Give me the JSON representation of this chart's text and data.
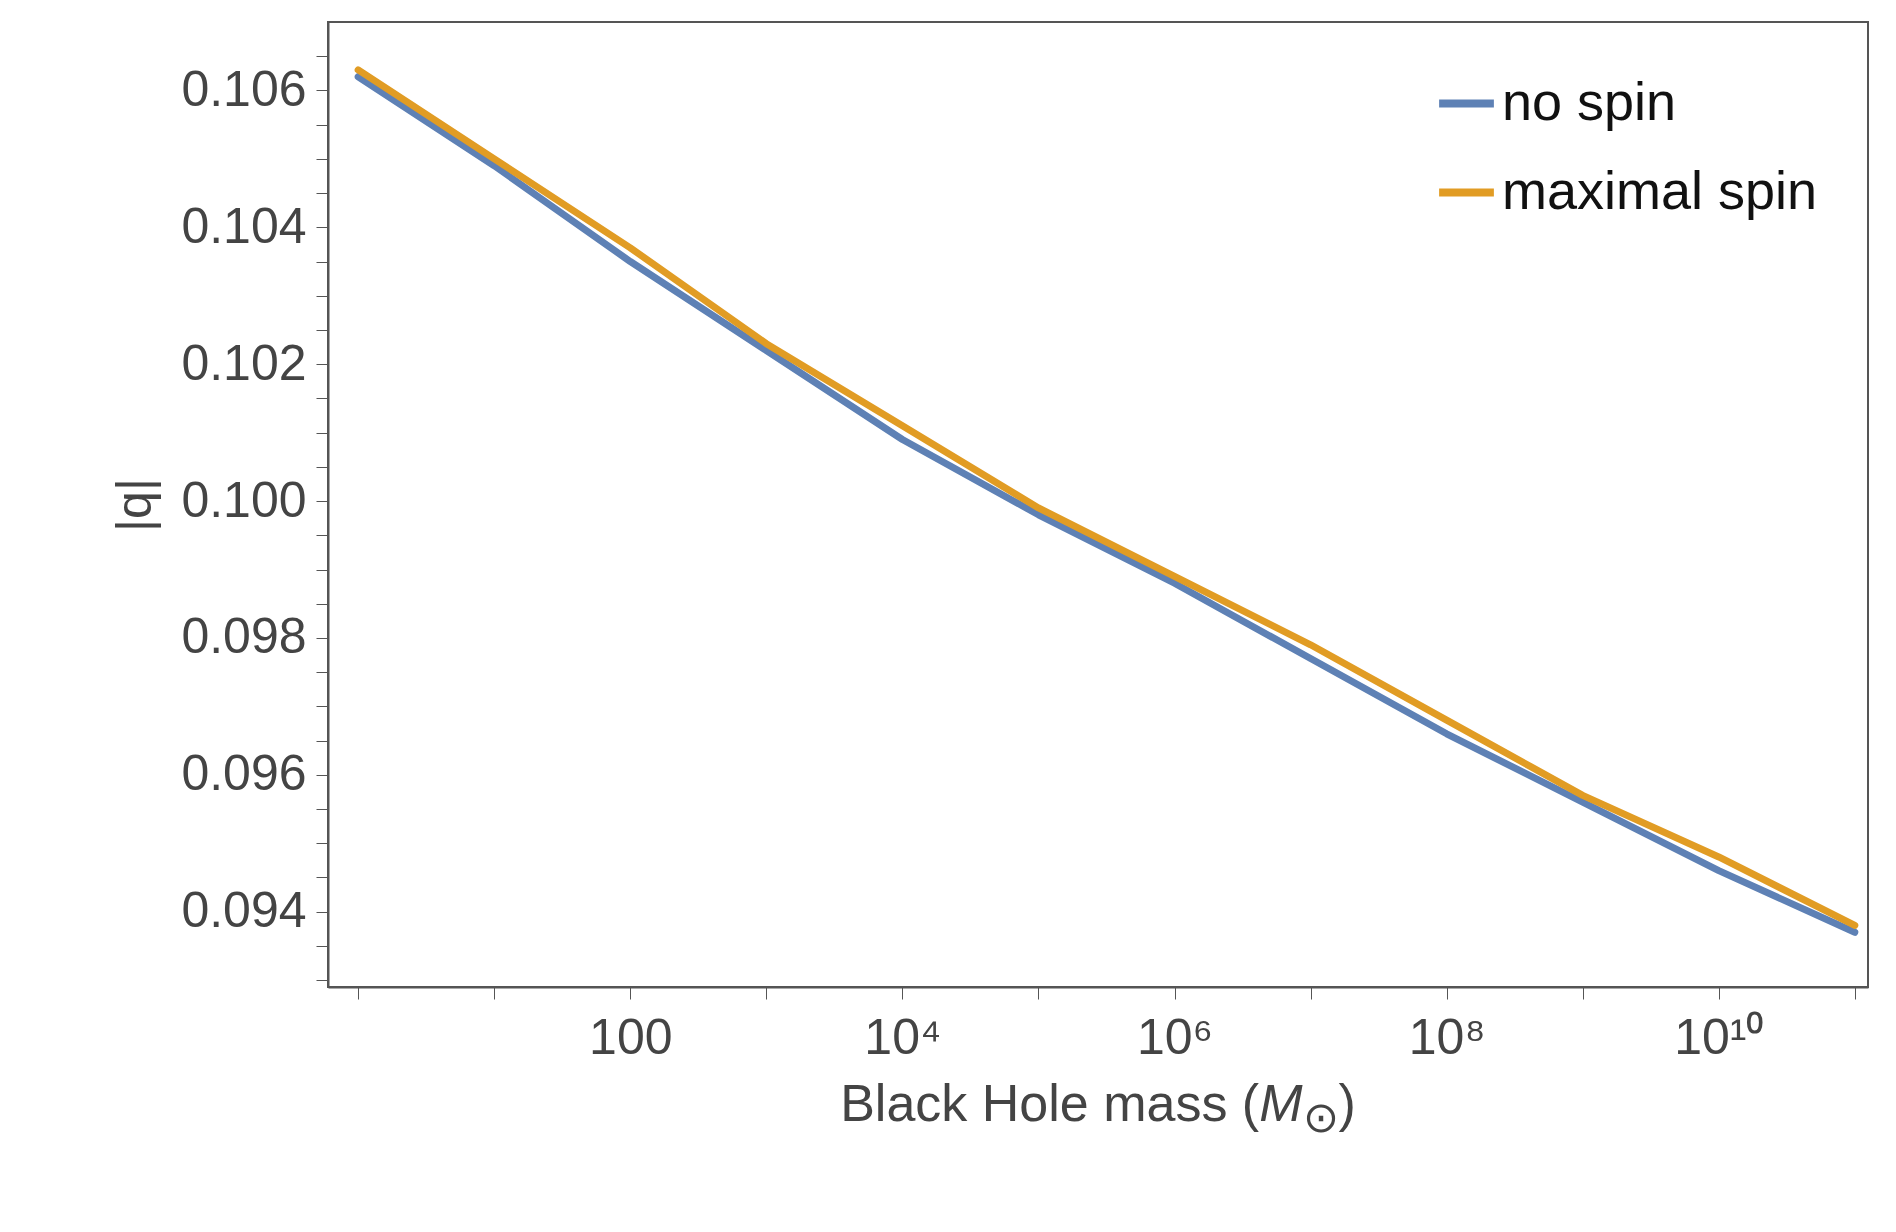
{
  "chart_data": {
    "type": "line",
    "xlabel": "Black Hole mass (M$_{⊙}$)",
    "ylabel": "|q|",
    "log": "x",
    "x": [
      1,
      10,
      100,
      1000,
      10000,
      100000,
      1000000,
      10000000,
      100000000,
      1000000000,
      10000000000,
      100000000000
    ],
    "series": [
      {
        "name": "no spin",
        "color": "#5e81b5",
        "values": [
          0.1062,
          0.1049,
          0.1035,
          0.1022,
          0.1009,
          0.0998,
          0.0988,
          0.0977,
          0.0966,
          0.0956,
          0.0946,
          0.0937
        ]
      },
      {
        "name": "maximal spin",
        "color": "#e19c24",
        "values": [
          0.1063,
          0.105,
          0.1037,
          0.1023,
          0.1011,
          0.0999,
          0.0989,
          0.0979,
          0.0968,
          0.0957,
          0.0948,
          0.0938
        ]
      }
    ],
    "xlim": [
      0.6,
      125000000000
    ],
    "xticks": [
      {
        "value": 1,
        "label": null
      },
      {
        "value": 10,
        "label": null
      },
      100,
      {
        "value": 1000,
        "label": null
      },
      {
        "value": 10000,
        "label": "10⁴"
      },
      {
        "value": 100000,
        "label": null
      },
      {
        "value": 1000000,
        "label": "10⁶"
      },
      {
        "value": 10000000,
        "label": null
      },
      {
        "value": 100000000,
        "label": "10⁸"
      },
      {
        "value": 1000000000,
        "label": null
      },
      {
        "value": 10000000000,
        "label": "10¹⁰"
      },
      {
        "value": 100000000000,
        "label": null
      }
    ],
    "ylim": [
      0.0929,
      0.107
    ],
    "yticks": [
      {
        "value": 0.093,
        "label": null
      },
      {
        "value": 0.0935,
        "label": null
      },
      0.094,
      {
        "value": 0.0945,
        "label": null
      },
      {
        "value": 0.095,
        "label": null
      },
      {
        "value": 0.0955,
        "label": null
      },
      0.096,
      {
        "value": 0.0965,
        "label": null
      },
      {
        "value": 0.097,
        "label": null
      },
      {
        "value": 0.0975,
        "label": null
      },
      0.098,
      {
        "value": 0.0985,
        "label": null
      },
      {
        "value": 0.099,
        "label": null
      },
      {
        "value": 0.0995,
        "label": null
      },
      {
        "value": 0.1,
        "label": "0.100"
      },
      {
        "value": 0.1005,
        "label": null
      },
      {
        "value": 0.101,
        "label": null
      },
      {
        "value": 0.1015,
        "label": null
      },
      0.102,
      {
        "value": 0.1025,
        "label": null
      },
      {
        "value": 0.103,
        "label": null
      },
      {
        "value": 0.1035,
        "label": null
      },
      0.104,
      {
        "value": 0.1045,
        "label": null
      },
      {
        "value": 0.105,
        "label": null
      },
      {
        "value": 0.1055,
        "label": null
      },
      0.106,
      {
        "value": 0.1065,
        "label": null
      }
    ],
    "grid": false,
    "legend": "top right",
    "line_style": "solid",
    "marker": "none"
  }
}
